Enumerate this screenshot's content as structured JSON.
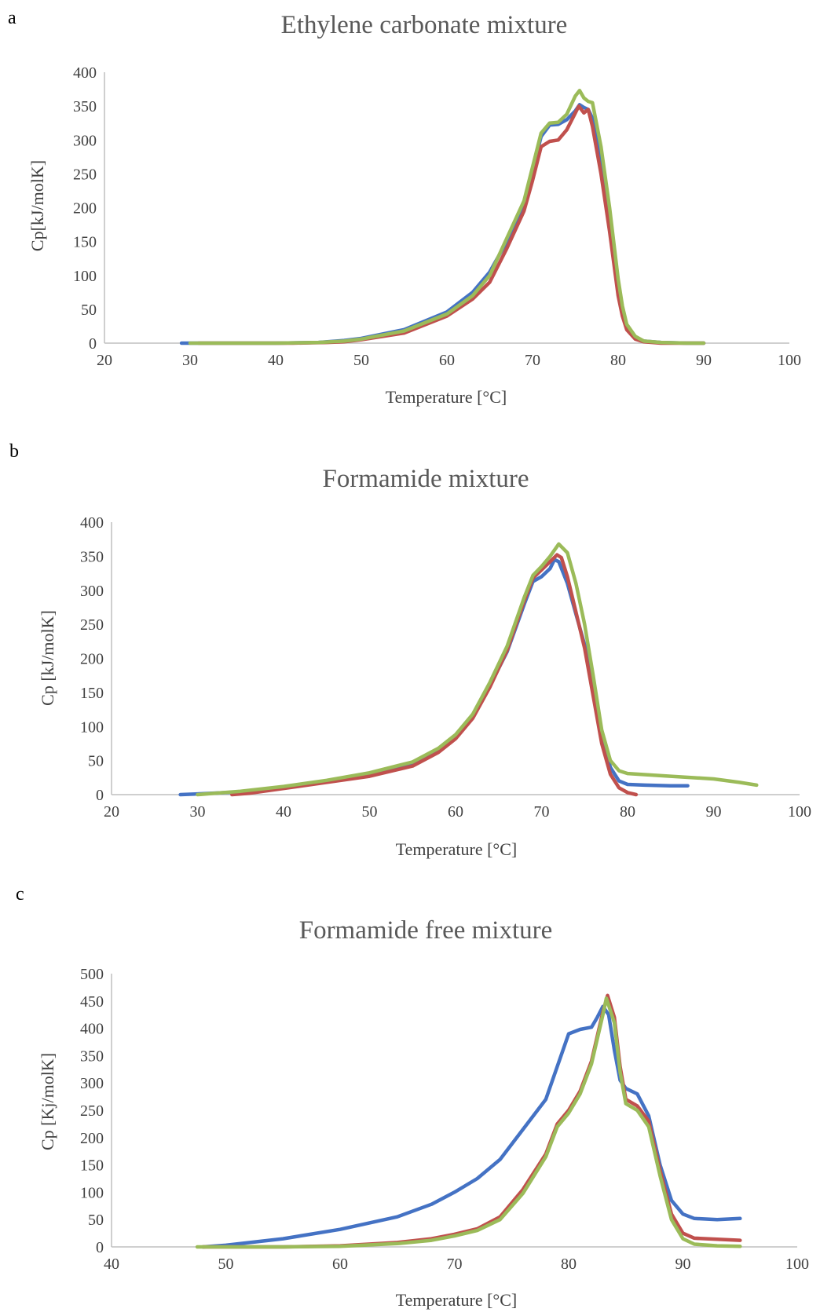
{
  "figure": {
    "panel_labels": [
      "a",
      "b",
      "c"
    ]
  },
  "chart_data": [
    {
      "type": "line",
      "panel": "a",
      "title": "Ethylene carbonate mixture",
      "xlabel": "Temperature  [°C]",
      "ylabel": "Cp[kJ/molK]",
      "xlim": [
        20,
        100
      ],
      "ylim": [
        0,
        400
      ],
      "xticks": [
        20,
        30,
        40,
        50,
        60,
        70,
        80,
        90,
        100
      ],
      "yticks": [
        0,
        50,
        100,
        150,
        200,
        250,
        300,
        350,
        400
      ],
      "grid": false,
      "legend": "none",
      "series": [
        {
          "color": "#4472c4",
          "points": [
            [
              29,
              0
            ],
            [
              40,
              0
            ],
            [
              45,
              1
            ],
            [
              48,
              4
            ],
            [
              50,
              7
            ],
            [
              55,
              20
            ],
            [
              60,
              46
            ],
            [
              63,
              75
            ],
            [
              65,
              105
            ],
            [
              67,
              150
            ],
            [
              69,
              205
            ],
            [
              70,
              255
            ],
            [
              71,
              305
            ],
            [
              72,
              322
            ],
            [
              73,
              323
            ],
            [
              74,
              330
            ],
            [
              75,
              343
            ],
            [
              75.5,
              352
            ],
            [
              76,
              348
            ],
            [
              76.5,
              345
            ],
            [
              77,
              332
            ],
            [
              78,
              270
            ],
            [
              79,
              185
            ],
            [
              80,
              85
            ],
            [
              80.5,
              50
            ],
            [
              81,
              25
            ],
            [
              82,
              8
            ],
            [
              83,
              3
            ],
            [
              85,
              1
            ],
            [
              88,
              0
            ],
            [
              90,
              0
            ]
          ]
        },
        {
          "color": "#c0504d",
          "points": [
            [
              31,
              0
            ],
            [
              42,
              0
            ],
            [
              46,
              1
            ],
            [
              48,
              2
            ],
            [
              50,
              5
            ],
            [
              55,
              15
            ],
            [
              60,
              40
            ],
            [
              63,
              65
            ],
            [
              65,
              90
            ],
            [
              67,
              140
            ],
            [
              69,
              195
            ],
            [
              70,
              240
            ],
            [
              71,
              290
            ],
            [
              72,
              298
            ],
            [
              73,
              300
            ],
            [
              74,
              315
            ],
            [
              75,
              340
            ],
            [
              75.4,
              350
            ],
            [
              76,
              340
            ],
            [
              76.5,
              345
            ],
            [
              77,
              320
            ],
            [
              78,
              250
            ],
            [
              79,
              165
            ],
            [
              80,
              70
            ],
            [
              80.5,
              40
            ],
            [
              81,
              20
            ],
            [
              82,
              6
            ],
            [
              83,
              2
            ],
            [
              85,
              0
            ],
            [
              90,
              0
            ]
          ]
        },
        {
          "color": "#9bbb59",
          "points": [
            [
              30,
              0
            ],
            [
              40,
              0
            ],
            [
              45,
              1
            ],
            [
              48,
              3
            ],
            [
              50,
              6
            ],
            [
              55,
              18
            ],
            [
              60,
              43
            ],
            [
              63,
              70
            ],
            [
              65,
              100
            ],
            [
              67,
              155
            ],
            [
              69,
              210
            ],
            [
              70,
              260
            ],
            [
              71,
              310
            ],
            [
              72,
              325
            ],
            [
              73,
              326
            ],
            [
              74,
              338
            ],
            [
              75,
              365
            ],
            [
              75.5,
              373
            ],
            [
              76,
              362
            ],
            [
              76.5,
              357
            ],
            [
              77,
              355
            ],
            [
              78,
              290
            ],
            [
              79,
              200
            ],
            [
              80,
              95
            ],
            [
              80.5,
              55
            ],
            [
              81,
              28
            ],
            [
              82,
              10
            ],
            [
              83,
              3
            ],
            [
              85,
              1
            ],
            [
              88,
              0
            ],
            [
              90,
              0
            ]
          ]
        }
      ]
    },
    {
      "type": "line",
      "panel": "b",
      "title": "Formamide mixture",
      "xlabel": "Temperature  [°C]",
      "ylabel": "Cp [kJ/molK]",
      "xlim": [
        20,
        100
      ],
      "ylim": [
        0,
        400
      ],
      "xticks": [
        20,
        30,
        40,
        50,
        60,
        70,
        80,
        90,
        100
      ],
      "yticks": [
        0,
        50,
        100,
        150,
        200,
        250,
        300,
        350,
        400
      ],
      "grid": false,
      "legend": "none",
      "series": [
        {
          "color": "#4472c4",
          "points": [
            [
              28,
              0
            ],
            [
              30,
              1
            ],
            [
              35,
              4
            ],
            [
              40,
              11
            ],
            [
              45,
              19
            ],
            [
              50,
              29
            ],
            [
              55,
              45
            ],
            [
              58,
              65
            ],
            [
              60,
              85
            ],
            [
              62,
              115
            ],
            [
              64,
              160
            ],
            [
              66,
              210
            ],
            [
              68,
              280
            ],
            [
              69,
              313
            ],
            [
              70,
              320
            ],
            [
              71,
              332
            ],
            [
              71.5,
              345
            ],
            [
              72,
              342
            ],
            [
              73,
              310
            ],
            [
              74,
              265
            ],
            [
              75,
              220
            ],
            [
              76,
              160
            ],
            [
              77,
              90
            ],
            [
              78,
              40
            ],
            [
              79,
              20
            ],
            [
              80,
              15
            ],
            [
              82,
              14
            ],
            [
              85,
              13
            ],
            [
              87,
              13
            ]
          ]
        },
        {
          "color": "#c0504d",
          "points": [
            [
              34,
              0
            ],
            [
              36,
              2
            ],
            [
              40,
              9
            ],
            [
              45,
              18
            ],
            [
              50,
              27
            ],
            [
              55,
              42
            ],
            [
              58,
              62
            ],
            [
              60,
              82
            ],
            [
              62,
              112
            ],
            [
              64,
              158
            ],
            [
              66,
              212
            ],
            [
              68,
              285
            ],
            [
              69,
              318
            ],
            [
              70,
              330
            ],
            [
              71,
              342
            ],
            [
              71.8,
              352
            ],
            [
              72.3,
              348
            ],
            [
              73,
              320
            ],
            [
              74,
              268
            ],
            [
              75,
              215
            ],
            [
              76,
              145
            ],
            [
              77,
              75
            ],
            [
              78,
              30
            ],
            [
              79,
              10
            ],
            [
              80,
              3
            ],
            [
              81,
              0
            ]
          ]
        },
        {
          "color": "#9bbb59",
          "points": [
            [
              30,
              0
            ],
            [
              32,
              2
            ],
            [
              35,
              5
            ],
            [
              40,
              12
            ],
            [
              45,
              21
            ],
            [
              50,
              32
            ],
            [
              55,
              48
            ],
            [
              58,
              68
            ],
            [
              60,
              88
            ],
            [
              62,
              118
            ],
            [
              64,
              165
            ],
            [
              66,
              218
            ],
            [
              68,
              290
            ],
            [
              69,
              322
            ],
            [
              70,
              335
            ],
            [
              71,
              350
            ],
            [
              72,
              368
            ],
            [
              73,
              355
            ],
            [
              74,
              310
            ],
            [
              75,
              250
            ],
            [
              76,
              175
            ],
            [
              77,
              95
            ],
            [
              78,
              50
            ],
            [
              79,
              35
            ],
            [
              80,
              31
            ],
            [
              85,
              27
            ],
            [
              90,
              23
            ],
            [
              93,
              18
            ],
            [
              95,
              14
            ]
          ]
        }
      ]
    },
    {
      "type": "line",
      "panel": "c",
      "title": "Formamide free mixture",
      "xlabel": "Temperature  [°C]",
      "ylabel": "Cp [Kj/molK]",
      "xlim": [
        40,
        100
      ],
      "ylim": [
        0,
        500
      ],
      "xticks": [
        40,
        50,
        60,
        70,
        80,
        90,
        100
      ],
      "yticks": [
        0,
        50,
        100,
        150,
        200,
        250,
        300,
        350,
        400,
        450,
        500
      ],
      "grid": false,
      "legend": "none",
      "series": [
        {
          "color": "#4472c4",
          "points": [
            [
              48,
              0
            ],
            [
              50,
              3
            ],
            [
              55,
              15
            ],
            [
              60,
              32
            ],
            [
              65,
              55
            ],
            [
              68,
              78
            ],
            [
              70,
              100
            ],
            [
              72,
              125
            ],
            [
              74,
              160
            ],
            [
              76,
              215
            ],
            [
              78,
              270
            ],
            [
              79,
              330
            ],
            [
              80,
              390
            ],
            [
              81,
              398
            ],
            [
              82,
              402
            ],
            [
              82.5,
              420
            ],
            [
              83,
              440
            ],
            [
              83.5,
              425
            ],
            [
              84,
              360
            ],
            [
              84.5,
              305
            ],
            [
              85,
              290
            ],
            [
              86,
              280
            ],
            [
              87,
              240
            ],
            [
              88,
              150
            ],
            [
              89,
              85
            ],
            [
              90,
              60
            ],
            [
              91,
              52
            ],
            [
              93,
              50
            ],
            [
              95,
              52
            ]
          ]
        },
        {
          "color": "#c0504d",
          "points": [
            [
              48,
              0
            ],
            [
              55,
              0
            ],
            [
              60,
              2
            ],
            [
              65,
              8
            ],
            [
              68,
              15
            ],
            [
              70,
              23
            ],
            [
              72,
              33
            ],
            [
              74,
              55
            ],
            [
              76,
              105
            ],
            [
              78,
              170
            ],
            [
              79,
              225
            ],
            [
              80,
              250
            ],
            [
              81,
              285
            ],
            [
              82,
              340
            ],
            [
              83,
              430
            ],
            [
              83.4,
              460
            ],
            [
              84,
              420
            ],
            [
              84.5,
              330
            ],
            [
              85,
              270
            ],
            [
              86,
              258
            ],
            [
              87,
              230
            ],
            [
              88,
              140
            ],
            [
              89,
              60
            ],
            [
              90,
              25
            ],
            [
              91,
              16
            ],
            [
              93,
              14
            ],
            [
              95,
              12
            ]
          ]
        },
        {
          "color": "#9bbb59",
          "points": [
            [
              47.5,
              0
            ],
            [
              55,
              0
            ],
            [
              60,
              1
            ],
            [
              65,
              6
            ],
            [
              68,
              12
            ],
            [
              70,
              20
            ],
            [
              72,
              30
            ],
            [
              74,
              50
            ],
            [
              76,
              98
            ],
            [
              78,
              165
            ],
            [
              79,
              220
            ],
            [
              80,
              245
            ],
            [
              81,
              280
            ],
            [
              82,
              335
            ],
            [
              83,
              425
            ],
            [
              83.3,
              455
            ],
            [
              84,
              410
            ],
            [
              84.5,
              320
            ],
            [
              85,
              262
            ],
            [
              86,
              250
            ],
            [
              87,
              220
            ],
            [
              88,
              130
            ],
            [
              89,
              50
            ],
            [
              90,
              15
            ],
            [
              91,
              5
            ],
            [
              93,
              2
            ],
            [
              95,
              1
            ]
          ]
        }
      ]
    }
  ]
}
